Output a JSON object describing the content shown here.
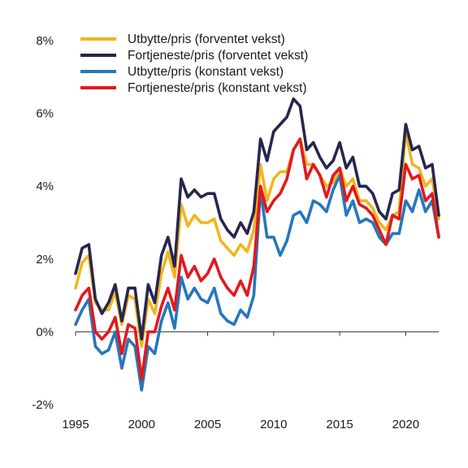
{
  "chart_data": {
    "type": "line",
    "title": "",
    "xlabel": "",
    "ylabel": "",
    "xlim": [
      1995,
      2022.5
    ],
    "ylim": [
      -2,
      8
    ],
    "x_ticks": [
      1995,
      2000,
      2005,
      2010,
      2015,
      2020
    ],
    "x_tick_labels": [
      "1995",
      "2000",
      "2005",
      "2010",
      "2015",
      "2020"
    ],
    "y_ticks": [
      -2,
      0,
      2,
      4,
      6,
      8
    ],
    "y_tick_labels": [
      "-2%",
      "0%",
      "2%",
      "4%",
      "6%",
      "8%"
    ],
    "legend_position": "top-left",
    "grid": false,
    "series": [
      {
        "name": "Utbytte/pris (forventet vekst)",
        "color": "#f2b51c",
        "x": [
          1995,
          1995.5,
          1996,
          1996.5,
          1997,
          1997.5,
          1998,
          1998.5,
          1999,
          1999.5,
          2000,
          2000.5,
          2001,
          2001.5,
          2002,
          2002.5,
          2003,
          2003.5,
          2004,
          2004.5,
          2005,
          2005.5,
          2006,
          2006.5,
          2007,
          2007.5,
          2008,
          2008.5,
          2009,
          2009.5,
          2010,
          2010.5,
          2011,
          2011.5,
          2012,
          2012.5,
          2013,
          2013.5,
          2014,
          2014.5,
          2015,
          2015.5,
          2016,
          2016.5,
          2017,
          2017.5,
          2018,
          2018.5,
          2019,
          2019.5,
          2020,
          2020.5,
          2021,
          2021.5,
          2022,
          2022.5
        ],
        "y": [
          1.2,
          1.9,
          2.1,
          0.8,
          0.6,
          0.6,
          1.1,
          0.2,
          1.0,
          0.9,
          -0.4,
          0.9,
          0.5,
          1.6,
          2.2,
          1.5,
          3.5,
          2.9,
          3.2,
          3.0,
          3.0,
          3.1,
          2.5,
          2.3,
          2.1,
          2.4,
          2.2,
          2.8,
          4.6,
          3.6,
          4.2,
          4.4,
          4.4,
          5.0,
          5.3,
          4.6,
          4.6,
          4.3,
          4.0,
          4.1,
          4.5,
          4.0,
          4.2,
          3.6,
          3.6,
          3.4,
          3.0,
          2.8,
          3.2,
          3.3,
          5.5,
          4.6,
          4.5,
          4.0,
          4.2,
          3.1
        ]
      },
      {
        "name": "Fortjeneste/pris (forventet vekst)",
        "color": "#262650",
        "x": [
          1995,
          1995.5,
          1996,
          1996.5,
          1997,
          1997.5,
          1998,
          1998.5,
          1999,
          1999.5,
          2000,
          2000.5,
          2001,
          2001.5,
          2002,
          2002.5,
          2003,
          2003.5,
          2004,
          2004.5,
          2005,
          2005.5,
          2006,
          2006.5,
          2007,
          2007.5,
          2008,
          2008.5,
          2009,
          2009.5,
          2010,
          2010.5,
          2011,
          2011.5,
          2012,
          2012.5,
          2013,
          2013.5,
          2014,
          2014.5,
          2015,
          2015.5,
          2016,
          2016.5,
          2017,
          2017.5,
          2018,
          2018.5,
          2019,
          2019.5,
          2020,
          2020.5,
          2021,
          2021.5,
          2022,
          2022.5
        ],
        "y": [
          1.6,
          2.3,
          2.4,
          0.9,
          0.5,
          0.8,
          1.3,
          0.3,
          1.2,
          1.2,
          -0.2,
          1.3,
          0.8,
          2.1,
          2.6,
          1.8,
          4.2,
          3.7,
          3.9,
          3.7,
          3.8,
          3.8,
          3.1,
          2.8,
          2.6,
          3.0,
          2.7,
          3.3,
          5.3,
          4.7,
          5.5,
          5.7,
          5.9,
          6.4,
          6.2,
          5.0,
          5.2,
          4.8,
          4.5,
          4.7,
          5.2,
          4.5,
          4.8,
          4.0,
          4.0,
          3.8,
          3.3,
          3.1,
          3.8,
          3.9,
          5.7,
          5.0,
          5.1,
          4.5,
          4.6,
          3.2
        ]
      },
      {
        "name": "Utbytte/pris (konstant vekst)",
        "color": "#2577bd",
        "x": [
          1995,
          1995.5,
          1996,
          1996.5,
          1997,
          1997.5,
          1998,
          1998.5,
          1999,
          1999.5,
          2000,
          2000.5,
          2001,
          2001.5,
          2002,
          2002.5,
          2003,
          2003.5,
          2004,
          2004.5,
          2005,
          2005.5,
          2006,
          2006.5,
          2007,
          2007.5,
          2008,
          2008.5,
          2009,
          2009.5,
          2010,
          2010.5,
          2011,
          2011.5,
          2012,
          2012.5,
          2013,
          2013.5,
          2014,
          2014.5,
          2015,
          2015.5,
          2016,
          2016.5,
          2017,
          2017.5,
          2018,
          2018.5,
          2019,
          2019.5,
          2020,
          2020.5,
          2021,
          2021.5,
          2022,
          2022.5
        ],
        "y": [
          0.2,
          0.6,
          0.9,
          -0.4,
          -0.6,
          -0.5,
          0.0,
          -1.0,
          -0.2,
          -0.4,
          -1.6,
          -0.4,
          -0.6,
          0.3,
          0.8,
          0.1,
          1.5,
          0.9,
          1.2,
          0.9,
          0.8,
          1.2,
          0.5,
          0.3,
          0.2,
          0.6,
          0.4,
          1.0,
          3.9,
          2.6,
          2.6,
          2.1,
          2.5,
          3.2,
          3.3,
          3.0,
          3.6,
          3.5,
          3.3,
          3.9,
          4.3,
          3.2,
          3.6,
          3.0,
          3.1,
          3.0,
          2.6,
          2.4,
          2.7,
          2.7,
          3.6,
          3.3,
          3.9,
          3.3,
          3.6,
          2.6
        ]
      },
      {
        "name": "Fortjeneste/pris (konstant vekst)",
        "color": "#e3181e",
        "x": [
          1995,
          1995.5,
          1996,
          1996.5,
          1997,
          1997.5,
          1998,
          1998.5,
          1999,
          1999.5,
          2000,
          2000.5,
          2001,
          2001.5,
          2002,
          2002.5,
          2003,
          2003.5,
          2004,
          2004.5,
          2005,
          2005.5,
          2006,
          2006.5,
          2007,
          2007.5,
          2008,
          2008.5,
          2009,
          2009.5,
          2010,
          2010.5,
          2011,
          2011.5,
          2012,
          2012.5,
          2013,
          2013.5,
          2014,
          2014.5,
          2015,
          2015.5,
          2016,
          2016.5,
          2017,
          2017.5,
          2018,
          2018.5,
          2019,
          2019.5,
          2020,
          2020.5,
          2021,
          2021.5,
          2022,
          2022.5
        ],
        "y": [
          0.6,
          1.0,
          1.2,
          0.0,
          -0.2,
          0.0,
          0.4,
          -0.6,
          0.2,
          0.1,
          -1.3,
          0.0,
          0.0,
          0.7,
          1.2,
          0.6,
          2.1,
          1.5,
          1.8,
          1.4,
          1.6,
          2.0,
          1.5,
          1.2,
          1.0,
          1.4,
          1.0,
          1.8,
          4.0,
          3.3,
          3.6,
          3.8,
          4.2,
          5.0,
          5.3,
          4.2,
          4.6,
          4.3,
          3.7,
          4.3,
          4.5,
          3.6,
          4.0,
          3.5,
          3.4,
          3.2,
          2.8,
          2.4,
          3.2,
          3.1,
          4.6,
          4.2,
          4.3,
          3.6,
          3.8,
          2.6
        ]
      }
    ]
  }
}
